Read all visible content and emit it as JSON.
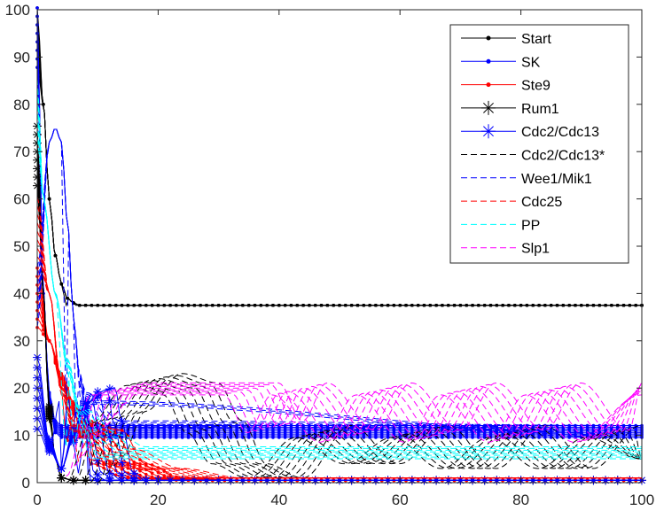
{
  "chart_data": {
    "type": "line",
    "title": "",
    "xlabel": "",
    "ylabel": "",
    "xlim": [
      0,
      100
    ],
    "ylim": [
      0,
      100
    ],
    "grid": false,
    "xticks": [
      0,
      20,
      40,
      60,
      80,
      100
    ],
    "yticks": [
      0,
      10,
      20,
      30,
      40,
      50,
      60,
      70,
      80,
      90,
      100
    ],
    "legend_position": "top-right",
    "series": [
      {
        "name": "Start",
        "color": "#000000",
        "style": "solid",
        "marker": "dot",
        "description_points": [
          [
            0,
            95
          ],
          [
            1,
            80
          ],
          [
            2,
            60
          ],
          [
            3,
            48
          ],
          [
            4,
            42
          ],
          [
            5,
            39
          ],
          [
            6,
            38
          ],
          [
            7,
            37.5
          ],
          [
            10,
            37.5
          ],
          [
            100,
            37.5
          ]
        ]
      },
      {
        "name": "SK",
        "color": "#0000ff",
        "style": "solid",
        "marker": "dot",
        "description_points": [
          [
            0,
            95
          ],
          [
            1,
            40
          ],
          [
            2,
            18
          ],
          [
            3,
            12
          ],
          [
            4,
            11
          ],
          [
            10,
            11
          ],
          [
            100,
            11
          ]
        ]
      },
      {
        "name": "Ste9",
        "color": "#ff0000",
        "style": "solid",
        "marker": "dot",
        "description_points": [
          [
            0,
            40
          ],
          [
            2,
            30
          ],
          [
            4,
            22
          ],
          [
            6,
            16
          ],
          [
            8,
            12
          ],
          [
            10,
            10
          ],
          [
            14,
            4
          ],
          [
            20,
            1
          ],
          [
            30,
            0.5
          ],
          [
            100,
            0.5
          ]
        ]
      },
      {
        "name": "Rum1",
        "color": "#000000",
        "style": "solid",
        "marker": "star",
        "description_points": [
          [
            0,
            70
          ],
          [
            1,
            40
          ],
          [
            2,
            15
          ],
          [
            3,
            5
          ],
          [
            4,
            1
          ],
          [
            6,
            0.5
          ],
          [
            100,
            0.5
          ]
        ]
      },
      {
        "name": "Cdc2/Cdc13",
        "color": "#0000ff",
        "style": "solid",
        "marker": "star",
        "description_points": [
          [
            0,
            20
          ],
          [
            2,
            8
          ],
          [
            4,
            3
          ],
          [
            6,
            10
          ],
          [
            8,
            16
          ],
          [
            9,
            19
          ],
          [
            10,
            12
          ],
          [
            12,
            2
          ],
          [
            14,
            0.5
          ],
          [
            100,
            0.5
          ]
        ]
      },
      {
        "name": "Cdc2/Cdc13*",
        "color": "#000000",
        "style": "dashed",
        "marker": "none",
        "description_points": [
          [
            10,
            0
          ],
          [
            14,
            14
          ],
          [
            20,
            22
          ],
          [
            26,
            20
          ],
          [
            30,
            12
          ],
          [
            34,
            4
          ],
          [
            40,
            1
          ],
          [
            48,
            11
          ],
          [
            56,
            4
          ],
          [
            64,
            11
          ],
          [
            72,
            3
          ],
          [
            80,
            11
          ],
          [
            88,
            3
          ],
          [
            96,
            11
          ],
          [
            100,
            5
          ]
        ]
      },
      {
        "name": "Wee1/Mik1",
        "color": "#0000ff",
        "style": "dashed",
        "marker": "none",
        "description_points": [
          [
            0,
            40
          ],
          [
            2,
            72
          ],
          [
            3,
            75
          ],
          [
            4,
            72
          ],
          [
            5,
            55
          ],
          [
            6,
            35
          ],
          [
            7,
            22
          ],
          [
            8,
            18
          ],
          [
            10,
            12
          ],
          [
            100,
            11
          ]
        ]
      },
      {
        "name": "Cdc25",
        "color": "#ff0000",
        "style": "dashed",
        "marker": "none",
        "description_points": [
          [
            0,
            55
          ],
          [
            2,
            40
          ],
          [
            4,
            20
          ],
          [
            6,
            12
          ],
          [
            8,
            10
          ],
          [
            12,
            6
          ],
          [
            20,
            3
          ],
          [
            30,
            1
          ],
          [
            100,
            1
          ]
        ]
      },
      {
        "name": "PP",
        "color": "#00ffff",
        "style": "dashed",
        "marker": "none",
        "description_points": [
          [
            0,
            80
          ],
          [
            1,
            60
          ],
          [
            3,
            40
          ],
          [
            5,
            25
          ],
          [
            7,
            15
          ],
          [
            10,
            9
          ],
          [
            14,
            6.5
          ],
          [
            100,
            6.5
          ]
        ]
      },
      {
        "name": "Slp1",
        "color": "#ff00ff",
        "style": "dashed",
        "marker": "none",
        "description_points": [
          [
            10,
            10
          ],
          [
            14,
            20
          ],
          [
            36,
            20
          ],
          [
            40,
            12
          ],
          [
            44,
            20
          ],
          [
            52,
            10
          ],
          [
            58,
            20
          ],
          [
            66,
            10
          ],
          [
            72,
            20
          ],
          [
            80,
            10
          ],
          [
            86,
            20
          ],
          [
            94,
            10
          ],
          [
            100,
            20
          ]
        ]
      }
    ]
  }
}
